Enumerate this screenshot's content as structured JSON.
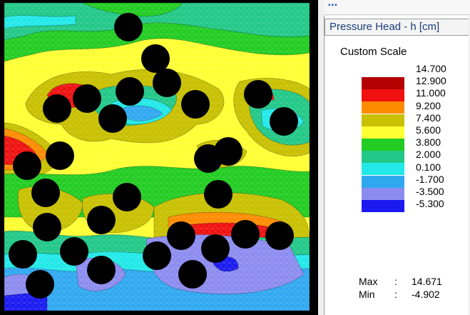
{
  "legend": {
    "title": "Pressure Head - h [cm]",
    "scale_mode": "Custom Scale",
    "ticks": [
      "14.700",
      "12.900",
      "11.000",
      "9.200",
      "7.400",
      "5.600",
      "3.800",
      "2.000",
      "0.100",
      "-1.700",
      "-3.500",
      "-5.300"
    ],
    "swatch_colors": [
      "#b40000",
      "#f01010",
      "#ff8c00",
      "#c8c000",
      "#ffff33",
      "#22cc22",
      "#22c888",
      "#22e8e8",
      "#30a8f0",
      "#8c8cf0",
      "#1a1af0"
    ],
    "stats": [
      {
        "name": "Max",
        "value": "14.671"
      },
      {
        "name": "Min",
        "value": "-4.902"
      }
    ]
  },
  "plot": {
    "palette": {
      "red": "#ee1111",
      "orange": "#ff8c00",
      "olive": "#c8c000",
      "yellow": "#ffff33",
      "green": "#22cc22",
      "teal": "#22c888",
      "cyan": "#22e8e8",
      "sky": "#30a8f0",
      "lavender": "#8c8cf0",
      "blue": "#1a1af0",
      "obstacle": "#000000"
    }
  }
}
